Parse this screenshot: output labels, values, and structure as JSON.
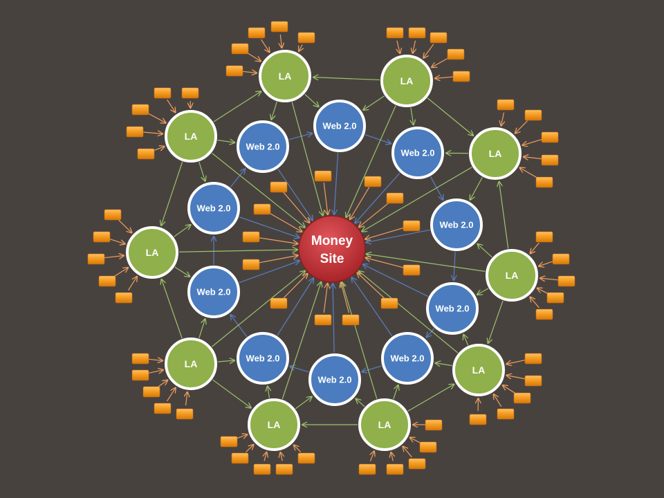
{
  "diagram": {
    "center": {
      "lines": [
        "Money",
        "Site"
      ]
    },
    "la_label": "LA",
    "web_label": "Web 2.0",
    "la_count": 10,
    "web_count": 10,
    "colors": {
      "background": "#48423f",
      "money_site": "#c8373a",
      "la": "#8fb04a",
      "web": "#4a7cbf",
      "box": "#f39a1f",
      "arrow_box": "#f0a060",
      "arrow_la": "#9cc46a",
      "arrow_web": "#5a7fc0",
      "node_border": "#ffffff"
    }
  }
}
